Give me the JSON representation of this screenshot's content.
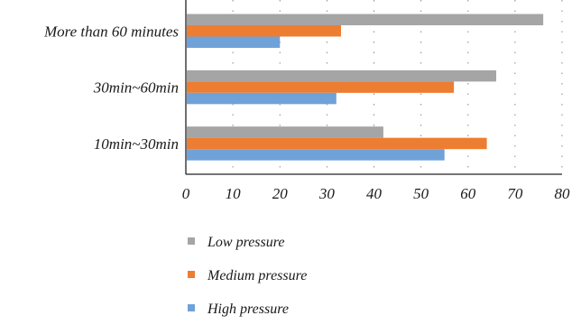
{
  "chart_data": {
    "type": "bar",
    "orientation": "horizontal",
    "categories": [
      "More than 60 minutes",
      "30min~60min",
      "10min~30min"
    ],
    "series": [
      {
        "name": "Low pressure",
        "color": "#a5a5a5",
        "values": [
          76,
          66,
          42
        ]
      },
      {
        "name": "Medium pressure",
        "color": "#ed7d31",
        "values": [
          33,
          57,
          64
        ]
      },
      {
        "name": "High pressure",
        "color": "#6fa2d8",
        "values": [
          20,
          32,
          55
        ]
      }
    ],
    "xlim": [
      0,
      80
    ],
    "x_ticks": [
      "0",
      "10",
      "20",
      "30",
      "40",
      "50",
      "60",
      "70",
      "80"
    ],
    "grid": "vertical dotted",
    "legend_position": "bottom",
    "title": "",
    "xlabel": "",
    "ylabel": ""
  }
}
